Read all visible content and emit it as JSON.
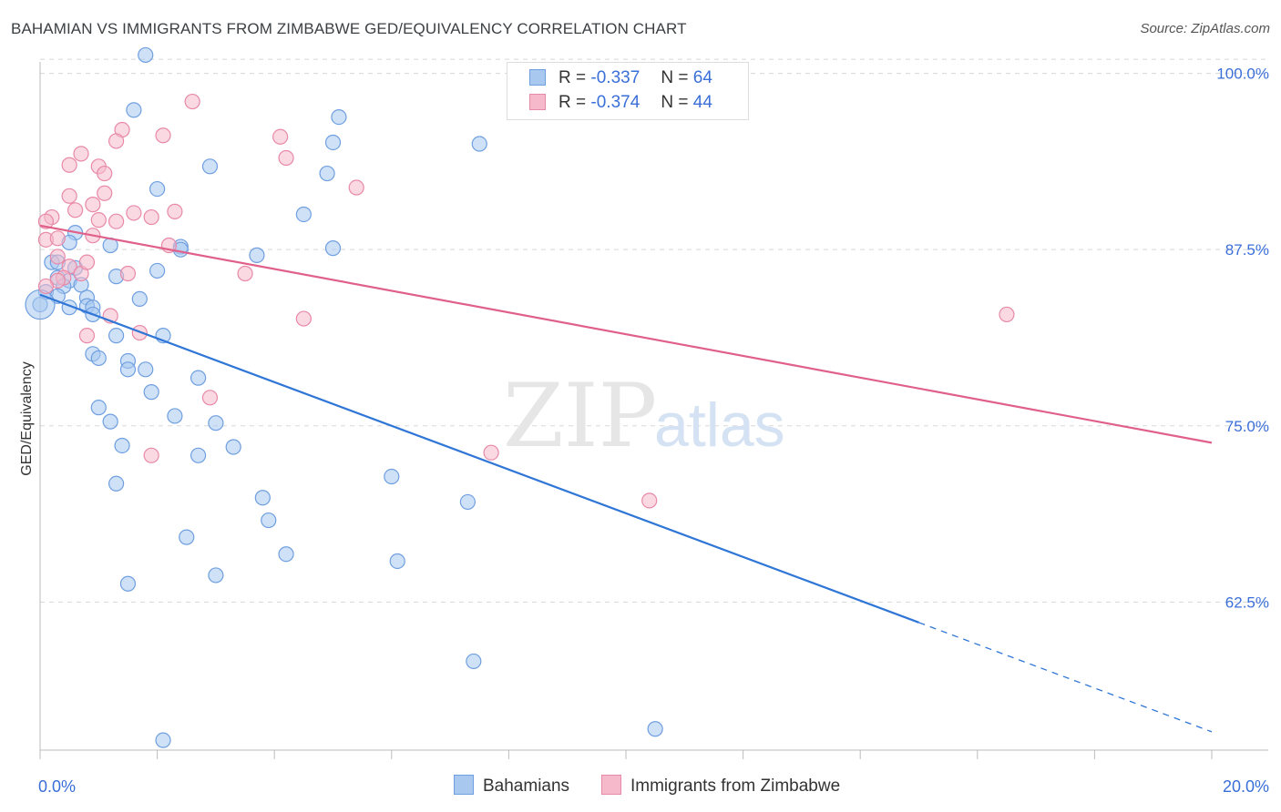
{
  "header": {
    "title": "BAHAMIAN VS IMMIGRANTS FROM ZIMBABWE GED/EQUIVALENCY CORRELATION CHART",
    "source": "Source: ZipAtlas.com"
  },
  "legend": {
    "r_label": "R =",
    "n_label": "N =",
    "series": [
      {
        "r": "-0.337",
        "n": "64"
      },
      {
        "r": "-0.374",
        "n": "44"
      }
    ]
  },
  "watermark": {
    "zip": "ZIP",
    "atlas": "atlas"
  },
  "colors": {
    "blue_fill": "#a8c8f0",
    "blue_edge": "#6f9fe0",
    "blue_line": "#2f76d6",
    "pink_fill": "#f6b9cb",
    "pink_edge": "#e889a8",
    "pink_line": "#e0608a",
    "tick_text": "#3a6fd8",
    "grid": "#d8d8d8"
  },
  "chart_data": {
    "type": "scatter",
    "title": "BAHAMIAN VS IMMIGRANTS FROM ZIMBABWE GED/EQUIVALENCY CORRELATION CHART",
    "xlabel": "",
    "ylabel": "GED/Equivalency",
    "xlim": [
      0,
      20
    ],
    "ylim": [
      52,
      101.2
    ],
    "x_tick_labels": [
      "0.0%",
      "20.0%"
    ],
    "y_ticks": [
      100,
      87.5,
      75,
      62.5
    ],
    "y_tick_labels": [
      "100.0%",
      "87.5%",
      "75.0%",
      "62.5%"
    ],
    "series": [
      {
        "name": "Bahamians",
        "r": -0.337,
        "n": 64,
        "trend": {
          "x0": 0,
          "y0": 84.3,
          "x1": 20,
          "y1": 53.3,
          "solid_until_x": 15
        },
        "points": [
          [
            1.8,
            101.3
          ],
          [
            1.6,
            97.4
          ],
          [
            5.1,
            96.9
          ],
          [
            5.0,
            95.1
          ],
          [
            7.5,
            95.0
          ],
          [
            2.9,
            93.4
          ],
          [
            4.9,
            92.9
          ],
          [
            2.0,
            91.8
          ],
          [
            4.5,
            90.0
          ],
          [
            0.6,
            88.7
          ],
          [
            0.5,
            88.0
          ],
          [
            1.2,
            87.8
          ],
          [
            2.4,
            87.7
          ],
          [
            2.4,
            87.5
          ],
          [
            5.0,
            87.6
          ],
          [
            3.7,
            87.1
          ],
          [
            0.2,
            86.6
          ],
          [
            0.3,
            86.6
          ],
          [
            0.6,
            86.2
          ],
          [
            2.0,
            86.0
          ],
          [
            1.3,
            85.6
          ],
          [
            0.3,
            85.5
          ],
          [
            0.5,
            85.3
          ],
          [
            0.7,
            85.0
          ],
          [
            0.4,
            84.9
          ],
          [
            0.1,
            84.5
          ],
          [
            0.3,
            84.2
          ],
          [
            0.8,
            84.1
          ],
          [
            1.7,
            84.0
          ],
          [
            0.5,
            83.4
          ],
          [
            0.8,
            83.5
          ],
          [
            0.9,
            83.4
          ],
          [
            0.0,
            83.6
          ],
          [
            0.9,
            82.9
          ],
          [
            1.3,
            81.4
          ],
          [
            2.1,
            81.4
          ],
          [
            0.9,
            80.1
          ],
          [
            1.0,
            79.8
          ],
          [
            1.5,
            79.6
          ],
          [
            1.5,
            79.0
          ],
          [
            1.8,
            79.0
          ],
          [
            2.7,
            78.4
          ],
          [
            1.9,
            77.4
          ],
          [
            1.0,
            76.3
          ],
          [
            1.2,
            75.3
          ],
          [
            2.3,
            75.7
          ],
          [
            3.0,
            75.2
          ],
          [
            1.4,
            73.6
          ],
          [
            3.3,
            73.5
          ],
          [
            2.7,
            72.9
          ],
          [
            6.0,
            71.4
          ],
          [
            1.3,
            70.9
          ],
          [
            3.8,
            69.9
          ],
          [
            7.3,
            69.6
          ],
          [
            3.9,
            68.3
          ],
          [
            2.5,
            67.1
          ],
          [
            4.2,
            65.9
          ],
          [
            6.1,
            65.4
          ],
          [
            3.0,
            64.4
          ],
          [
            1.5,
            63.8
          ],
          [
            7.4,
            58.3
          ],
          [
            2.1,
            52.7
          ],
          [
            10.5,
            53.5
          ],
          [
            0.0,
            83.6
          ]
        ]
      },
      {
        "name": "Immigrants from Zimbabwe",
        "r": -0.374,
        "n": 44,
        "trend": {
          "x0": 0,
          "y0": 89.2,
          "x1": 20,
          "y1": 73.8,
          "solid_until_x": 20
        },
        "points": [
          [
            2.6,
            98.0
          ],
          [
            1.4,
            96.0
          ],
          [
            1.3,
            95.2
          ],
          [
            2.1,
            95.6
          ],
          [
            4.1,
            95.5
          ],
          [
            0.7,
            94.3
          ],
          [
            4.2,
            94.0
          ],
          [
            0.5,
            93.5
          ],
          [
            1.0,
            93.4
          ],
          [
            1.1,
            92.9
          ],
          [
            5.4,
            91.9
          ],
          [
            0.5,
            91.3
          ],
          [
            1.1,
            91.5
          ],
          [
            0.9,
            90.7
          ],
          [
            0.6,
            90.3
          ],
          [
            1.6,
            90.1
          ],
          [
            1.9,
            89.8
          ],
          [
            2.3,
            90.2
          ],
          [
            0.2,
            89.8
          ],
          [
            0.1,
            89.5
          ],
          [
            1.0,
            89.6
          ],
          [
            1.3,
            89.5
          ],
          [
            0.9,
            88.5
          ],
          [
            0.1,
            88.2
          ],
          [
            0.3,
            88.3
          ],
          [
            2.2,
            87.8
          ],
          [
            0.3,
            87.0
          ],
          [
            0.5,
            86.3
          ],
          [
            3.5,
            85.8
          ],
          [
            0.7,
            85.8
          ],
          [
            1.5,
            85.8
          ],
          [
            0.4,
            85.5
          ],
          [
            0.3,
            85.3
          ],
          [
            0.1,
            84.9
          ],
          [
            0.8,
            86.6
          ],
          [
            1.2,
            82.8
          ],
          [
            4.5,
            82.6
          ],
          [
            16.5,
            82.9
          ],
          [
            1.7,
            81.6
          ],
          [
            0.8,
            81.4
          ],
          [
            2.9,
            77.0
          ],
          [
            1.9,
            72.9
          ],
          [
            7.7,
            73.1
          ],
          [
            10.4,
            69.7
          ]
        ]
      }
    ]
  },
  "bottom_legend": {
    "items": [
      {
        "label": "Bahamians"
      },
      {
        "label": "Immigrants from Zimbabwe"
      }
    ]
  }
}
